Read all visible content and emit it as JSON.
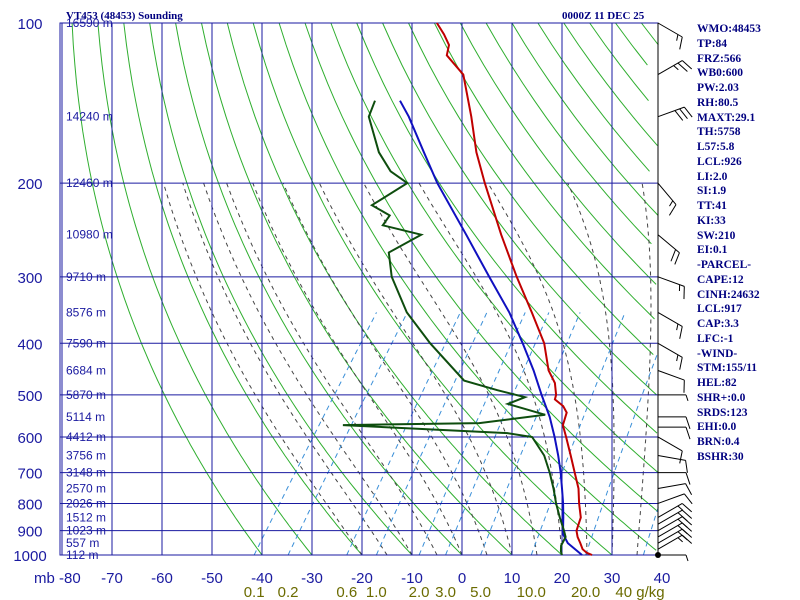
{
  "header": {
    "station": "VT453 (48453) Sounding",
    "time": "0000Z 11 DEC 25"
  },
  "indices": [
    "WMO:48453",
    "TP:84",
    "FRZ:566",
    "WB0:600",
    "PW:2.03",
    "RH:80.5",
    "MAXT:29.1",
    "TH:5758",
    "L57:5.8",
    "LCL:926",
    "LI:2.0",
    "SI:1.9",
    "TT:41",
    "KI:33",
    "SW:210",
    "EI:0.1",
    "-PARCEL-",
    "CAPE:12",
    "CINH:24632",
    "LCL:917",
    "CAP:3.3",
    "LFC:-1",
    "-WIND-",
    "STM:155/11",
    "HEL:82",
    "SHR+:0.0",
    "SRDS:123",
    "EHI:0.0",
    "BRN:0.4",
    "BSHR:30"
  ],
  "colors": {
    "grid": "#1a1aa0",
    "dry_adiabat": "#2fae2f",
    "moist_adiabat": "#444444",
    "mixing_ratio": "#3a8fd8",
    "temperature": "#c00000",
    "dewpoint": "#0e4d0e",
    "parcel": "#1010c0",
    "wind": "#000000"
  },
  "chart_data": {
    "type": "skew-t",
    "pressure_unit": "mb",
    "mixing_ratio_unit": "g/kg",
    "pressure_levels": [
      1000,
      900,
      800,
      700,
      600,
      500,
      400,
      300,
      200,
      100
    ],
    "pressure_labels": [
      "1000",
      "900",
      "800",
      "700",
      "600",
      "500",
      "400",
      "300",
      "200",
      "100"
    ],
    "temperature_ticks": [
      -80,
      -70,
      -60,
      -50,
      -40,
      -30,
      -20,
      -10,
      0,
      10,
      20,
      30,
      40
    ],
    "temperature_labels": [
      "mb -80",
      "-70",
      "-60",
      "-50",
      "-40",
      "-30",
      "-20",
      "-10",
      "0",
      "10",
      "20",
      "30",
      "40"
    ],
    "mixing_ratio_lines": [
      0.1,
      0.2,
      0.6,
      1.0,
      2.0,
      3.0,
      5.0,
      10.0,
      20.0,
      40.0
    ],
    "mixing_ratio_labels": [
      "0.1",
      "0.2",
      "0.6",
      "1.0",
      "2.0",
      "3.0",
      "5.0",
      "10.0",
      "20.0",
      "40 g/kg"
    ],
    "height_labels": [
      {
        "p": 1000,
        "text": "112 m"
      },
      {
        "p": 950,
        "text": "557 m"
      },
      {
        "p": 900,
        "text": "1023 m"
      },
      {
        "p": 850,
        "text": "1512 m"
      },
      {
        "p": 800,
        "text": "2026 m"
      },
      {
        "p": 750,
        "text": "2570 m"
      },
      {
        "p": 700,
        "text": "3148 m"
      },
      {
        "p": 650,
        "text": "3756 m"
      },
      {
        "p": 600,
        "text": "4412 m"
      },
      {
        "p": 550,
        "text": "5114 m"
      },
      {
        "p": 500,
        "text": "5870 m"
      },
      {
        "p": 450,
        "text": "6684 m"
      },
      {
        "p": 400,
        "text": "7590 m"
      },
      {
        "p": 350,
        "text": "8576 m"
      },
      {
        "p": 300,
        "text": "9710 m"
      },
      {
        "p": 250,
        "text": "10980 m"
      },
      {
        "p": 200,
        "text": "12460 m"
      },
      {
        "p": 150,
        "text": "14240 m"
      },
      {
        "p": 100,
        "text": "16590 m"
      }
    ],
    "temperature_profile": [
      {
        "p": 1000,
        "t": 26.0
      },
      {
        "p": 990,
        "t": 24.6
      },
      {
        "p": 975,
        "t": 23.3
      },
      {
        "p": 950,
        "t": 22.0
      },
      {
        "p": 925,
        "t": 20.6
      },
      {
        "p": 900,
        "t": 19.5
      },
      {
        "p": 875,
        "t": 19.0
      },
      {
        "p": 850,
        "t": 18.5
      },
      {
        "p": 800,
        "t": 16.2
      },
      {
        "p": 750,
        "t": 14.0
      },
      {
        "p": 700,
        "t": 11.0
      },
      {
        "p": 650,
        "t": 7.8
      },
      {
        "p": 600,
        "t": 4.3
      },
      {
        "p": 570,
        "t": 2.0
      },
      {
        "p": 540,
        "t": 1.0
      },
      {
        "p": 525,
        "t": -0.6
      },
      {
        "p": 510,
        "t": -3.2
      },
      {
        "p": 500,
        "t": -3.6
      },
      {
        "p": 475,
        "t": -5.5
      },
      {
        "p": 450,
        "t": -8.5
      },
      {
        "p": 400,
        "t": -13.2
      },
      {
        "p": 350,
        "t": -20.0
      },
      {
        "p": 300,
        "t": -28.0
      },
      {
        "p": 250,
        "t": -37.0
      },
      {
        "p": 200,
        "t": -47.5
      },
      {
        "p": 175,
        "t": -53.5
      },
      {
        "p": 150,
        "t": -59.5
      },
      {
        "p": 125,
        "t": -67.0
      },
      {
        "p": 115,
        "t": -73.0
      },
      {
        "p": 110,
        "t": -74.0
      },
      {
        "p": 105,
        "t": -76.5
      },
      {
        "p": 100,
        "t": -79.5
      }
    ],
    "dewpoint_profile": [
      {
        "p": 1000,
        "td": 20.0
      },
      {
        "p": 985,
        "td": 19.3
      },
      {
        "p": 960,
        "td": 18.5
      },
      {
        "p": 925,
        "td": 18.2
      },
      {
        "p": 900,
        "td": 17.0
      },
      {
        "p": 850,
        "td": 14.3
      },
      {
        "p": 800,
        "td": 11.6
      },
      {
        "p": 750,
        "td": 9.0
      },
      {
        "p": 700,
        "td": 6.0
      },
      {
        "p": 650,
        "td": 2.5
      },
      {
        "p": 600,
        "td": -2.5
      },
      {
        "p": 590,
        "td": -8.0
      },
      {
        "p": 570,
        "td": -42.0
      },
      {
        "p": 565,
        "td": -15.0
      },
      {
        "p": 545,
        "td": -3.0
      },
      {
        "p": 520,
        "td": -12.0
      },
      {
        "p": 505,
        "td": -9.5
      },
      {
        "p": 490,
        "td": -16.0
      },
      {
        "p": 470,
        "td": -24.0
      },
      {
        "p": 400,
        "td": -36.0
      },
      {
        "p": 350,
        "td": -45.0
      },
      {
        "p": 300,
        "td": -53.0
      },
      {
        "p": 270,
        "td": -57.0
      },
      {
        "p": 250,
        "td": -53.0
      },
      {
        "p": 240,
        "td": -62.0
      },
      {
        "p": 230,
        "td": -62.0
      },
      {
        "p": 220,
        "td": -67.0
      },
      {
        "p": 200,
        "td": -63.0
      },
      {
        "p": 190,
        "td": -68.0
      },
      {
        "p": 175,
        "td": -73.0
      },
      {
        "p": 150,
        "td": -80.0
      },
      {
        "p": 140,
        "td": -81.0
      }
    ],
    "parcel_profile": [
      {
        "p": 1000,
        "t": 24.0
      },
      {
        "p": 950,
        "t": 19.5
      },
      {
        "p": 917,
        "t": 17.5
      },
      {
        "p": 900,
        "t": 16.8
      },
      {
        "p": 850,
        "t": 15.0
      },
      {
        "p": 800,
        "t": 13.0
      },
      {
        "p": 750,
        "t": 10.7
      },
      {
        "p": 700,
        "t": 8.2
      },
      {
        "p": 650,
        "t": 5.3
      },
      {
        "p": 600,
        "t": 2.0
      },
      {
        "p": 550,
        "t": -1.8
      },
      {
        "p": 500,
        "t": -6.5
      },
      {
        "p": 450,
        "t": -11.5
      },
      {
        "p": 400,
        "t": -17.5
      },
      {
        "p": 350,
        "t": -24.5
      },
      {
        "p": 300,
        "t": -33.5
      },
      {
        "p": 250,
        "t": -44.0
      },
      {
        "p": 200,
        "t": -57.0
      },
      {
        "p": 175,
        "t": -64.0
      },
      {
        "p": 150,
        "t": -72.0
      },
      {
        "p": 140,
        "t": -76.0
      }
    ],
    "wind_profile": [
      {
        "p": 1000,
        "dir": 90,
        "spd": 5
      },
      {
        "p": 975,
        "dir": 60,
        "spd": 15
      },
      {
        "p": 950,
        "dir": 60,
        "spd": 20
      },
      {
        "p": 925,
        "dir": 60,
        "spd": 20
      },
      {
        "p": 900,
        "dir": 60,
        "spd": 20
      },
      {
        "p": 875,
        "dir": 60,
        "spd": 20
      },
      {
        "p": 850,
        "dir": 60,
        "spd": 15
      },
      {
        "p": 800,
        "dir": 70,
        "spd": 10
      },
      {
        "p": 750,
        "dir": 80,
        "spd": 10
      },
      {
        "p": 700,
        "dir": 90,
        "spd": 10
      },
      {
        "p": 650,
        "dir": 100,
        "spd": 10
      },
      {
        "p": 600,
        "dir": 120,
        "spd": 10
      },
      {
        "p": 575,
        "dir": 90,
        "spd": 10
      },
      {
        "p": 550,
        "dir": 90,
        "spd": 10
      },
      {
        "p": 500,
        "dir": 90,
        "spd": 5
      },
      {
        "p": 450,
        "dir": 110,
        "spd": 10
      },
      {
        "p": 400,
        "dir": 120,
        "spd": 15
      },
      {
        "p": 350,
        "dir": 120,
        "spd": 15
      },
      {
        "p": 300,
        "dir": 110,
        "spd": 15
      },
      {
        "p": 250,
        "dir": 130,
        "spd": 20
      },
      {
        "p": 200,
        "dir": 140,
        "spd": 15
      },
      {
        "p": 150,
        "dir": 70,
        "spd": 30
      },
      {
        "p": 125,
        "dir": 60,
        "spd": 25
      },
      {
        "p": 100,
        "dir": 120,
        "spd": 15
      }
    ]
  }
}
